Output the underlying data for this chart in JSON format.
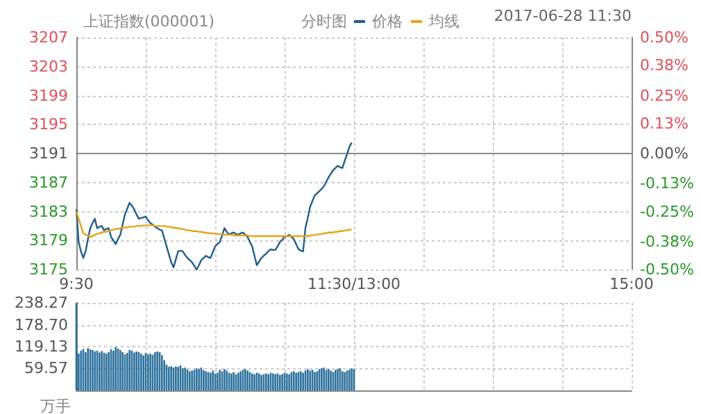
{
  "chart_data": [
    {
      "type": "line",
      "title": "上证指数(000001)",
      "subtitle": "分时图",
      "annotations": [
        "2017-06-28 11:30"
      ],
      "categories": [
        "9:30",
        null,
        null,
        null,
        null,
        null,
        null,
        null,
        null,
        null,
        null,
        null,
        null,
        null,
        null,
        null,
        null,
        null,
        null,
        null,
        null,
        null,
        null,
        null,
        null,
        null,
        null,
        null,
        null,
        null,
        null,
        null,
        null,
        null,
        null,
        null,
        null,
        null,
        null,
        null,
        null,
        null,
        null,
        null,
        null,
        null,
        null,
        null,
        null,
        null,
        null,
        null,
        null,
        null,
        null,
        null,
        null,
        null,
        null,
        null,
        null,
        null,
        null,
        null,
        null,
        null,
        null,
        null,
        null,
        null,
        null,
        null,
        null,
        null,
        null,
        null,
        null,
        null,
        null,
        null,
        null,
        null,
        null,
        null,
        null,
        null,
        null,
        null,
        null,
        null,
        null,
        null,
        null,
        null,
        null,
        null,
        null,
        null,
        null,
        null,
        null,
        null,
        null,
        null,
        null,
        null,
        null,
        null,
        null,
        null,
        null,
        null,
        null,
        null,
        null,
        null,
        null,
        null,
        null,
        null,
        "11:30/13:00",
        null,
        null,
        null,
        null,
        null,
        null,
        null,
        null,
        null,
        null,
        null,
        null,
        null,
        null,
        null,
        null,
        null,
        null,
        null,
        null,
        null,
        null,
        null,
        null,
        null,
        null,
        null,
        null,
        null,
        null,
        null,
        null,
        null,
        null,
        null,
        null,
        null,
        null,
        null,
        null,
        null,
        null,
        null,
        null,
        null,
        null,
        null,
        null,
        null,
        null,
        null,
        null,
        null,
        null,
        null,
        null,
        null,
        null,
        null,
        null,
        null,
        null,
        null,
        null,
        null,
        null,
        null,
        null,
        null,
        null,
        null,
        null,
        null,
        null,
        null,
        null,
        null,
        null,
        null,
        null,
        null,
        null,
        null,
        null,
        null,
        null,
        null,
        null,
        null,
        null,
        null,
        null,
        null,
        null,
        null,
        null,
        null,
        null,
        null,
        null,
        null,
        null,
        null,
        null,
        null,
        null,
        null,
        null,
        null,
        null,
        null,
        null,
        null,
        null,
        null,
        null,
        null,
        null,
        null,
        "15:00"
      ],
      "ylim": [
        3175,
        3207
      ],
      "yticks": [
        3175,
        3179,
        3183,
        3187,
        3191,
        3195,
        3199,
        3203,
        3207
      ],
      "y2lim": [
        -0.5,
        0.5
      ],
      "y2ticks": [
        {
          "value": -0.5,
          "label": "-0.50%"
        },
        {
          "value": -0.38,
          "label": "-0.38%"
        },
        {
          "value": -0.25,
          "label": "-0.25%"
        },
        {
          "value": -0.13,
          "label": "-0.13%"
        },
        {
          "value": 0,
          "label": "0.00%"
        },
        {
          "value": 0.13,
          "label": "0.13%"
        },
        {
          "value": 0.25,
          "label": "0.25%"
        },
        {
          "value": 0.38,
          "label": "0.38%"
        },
        {
          "value": 0.5,
          "label": "0.50%"
        }
      ],
      "grid": true,
      "legend": "top",
      "series": [
        {
          "name": "价格",
          "color": "#1f5f8b",
          "values": [
            3183.3,
            3178.8,
            3177.5,
            3176.6,
            3177.5,
            3179.2,
            3180.7,
            3181.4,
            3182.0,
            3180.7,
            3180.9,
            3181.0,
            3180.4,
            3180.6,
            3180.7,
            3179.5,
            3179.0,
            3178.5,
            3179.2,
            3179.8,
            3181.2,
            3182.6,
            3183.4,
            3184.2,
            3183.8,
            3183.3,
            3182.6,
            3182.0,
            3182.1,
            3182.2,
            3182.3,
            3181.8,
            3181.4,
            3181.2,
            3180.9,
            3180.7,
            3180.5,
            3180.4,
            3179.3,
            3178.2,
            3177.1,
            3176.0,
            3175.3,
            3176.4,
            3177.5,
            3177.6,
            3177.5,
            3177.0,
            3176.6,
            3176.3,
            3176.0,
            3175.5,
            3175.0,
            3175.6,
            3176.3,
            3176.6,
            3176.9,
            3176.7,
            3176.6,
            3177.4,
            3178.2,
            3178.5,
            3178.8,
            3179.7,
            3180.7,
            3180.2,
            3179.8,
            3180.0,
            3180.1,
            3179.9,
            3179.8,
            3180.0,
            3180.1,
            3179.8,
            3179.5,
            3178.8,
            3178.2,
            3176.9,
            3175.6,
            3176.1,
            3176.6,
            3176.9,
            3177.2,
            3177.5,
            3177.8,
            3177.7,
            3177.7,
            3178.2,
            3178.8,
            3179.1,
            3179.5,
            3179.6,
            3179.8,
            3179.5,
            3179.2,
            3178.5,
            3177.8,
            3177.6,
            3177.5,
            3180.7,
            3182.1,
            3183.6,
            3184.4,
            3185.2,
            3185.5,
            3185.8,
            3186.1,
            3186.5,
            3187.1,
            3187.7,
            3188.2,
            3188.7,
            3189.0,
            3189.3,
            3189.1,
            3189.0,
            3190.0,
            3190.9,
            3191.9,
            3192.5,
            null,
            null,
            null,
            null,
            null,
            null,
            null,
            null,
            null,
            null,
            null,
            null,
            null,
            null,
            null,
            null,
            null,
            null,
            null,
            null,
            null,
            null,
            null,
            null,
            null,
            null,
            null,
            null,
            null,
            null,
            null,
            null,
            null,
            null,
            null,
            null,
            null,
            null,
            null,
            null,
            null,
            null,
            null,
            null,
            null,
            null,
            null,
            null,
            null,
            null,
            null,
            null,
            null,
            null,
            null,
            null,
            null,
            null,
            null,
            null,
            null,
            null,
            null,
            null,
            null,
            null,
            null,
            null,
            null,
            null,
            null,
            null,
            null,
            null,
            null,
            null,
            null,
            null,
            null,
            null,
            null,
            null,
            null,
            null,
            null,
            null,
            null,
            null,
            null,
            null,
            null,
            null,
            null,
            null,
            null,
            null,
            null,
            null,
            null,
            null,
            null,
            null,
            null,
            null,
            null,
            null,
            null,
            null,
            null,
            null,
            null,
            null,
            null,
            null,
            null,
            null,
            null,
            null,
            null,
            null,
            null
          ]
        },
        {
          "name": "均线",
          "color": "#e8a317",
          "values": [
            3183.0,
            3182.0,
            3181.0,
            3180.0,
            3179.8,
            3179.7,
            3179.5,
            3179.6,
            3179.8,
            3179.9,
            3180.0,
            3180.1,
            3180.2,
            3180.2,
            3180.3,
            3180.4,
            3180.5,
            3180.6,
            3180.6,
            3180.7,
            3180.8,
            3180.8,
            3180.8,
            3180.9,
            3180.9,
            3180.9,
            3181.0,
            3181.0,
            3181.0,
            3181.1,
            3181.1,
            3181.1,
            3181.1,
            3181.1,
            3181.0,
            3181.0,
            3181.0,
            3181.0,
            3181.0,
            3180.9,
            3180.9,
            3180.8,
            3180.8,
            3180.7,
            3180.7,
            3180.6,
            3180.6,
            3180.5,
            3180.4,
            3180.4,
            3180.3,
            3180.3,
            3180.3,
            3180.2,
            3180.2,
            3180.1,
            3180.1,
            3180.0,
            3180.0,
            3180.0,
            3179.9,
            3179.9,
            3179.9,
            3179.9,
            3179.8,
            3179.8,
            3179.8,
            3179.8,
            3179.7,
            3179.7,
            3179.7,
            3179.7,
            3179.7,
            3179.7,
            3179.7,
            3179.6,
            3179.6,
            3179.6,
            3179.6,
            3179.6,
            3179.6,
            3179.6,
            3179.6,
            3179.6,
            3179.6,
            3179.6,
            3179.6,
            3179.6,
            3179.6,
            3179.6,
            3179.6,
            3179.6,
            3179.6,
            3179.6,
            3179.6,
            3179.6,
            3179.6,
            3179.6,
            3179.6,
            3179.6,
            3179.6,
            3179.7,
            3179.7,
            3179.8,
            3179.8,
            3179.9,
            3179.9,
            3180.0,
            3180.0,
            3180.1,
            3180.1,
            3180.1,
            3180.2,
            3180.2,
            3180.3,
            3180.3,
            3180.4,
            3180.4,
            3180.5,
            3180.5,
            null,
            null,
            null,
            null,
            null,
            null,
            null,
            null,
            null,
            null,
            null,
            null,
            null,
            null,
            null,
            null,
            null,
            null,
            null,
            null,
            null,
            null,
            null,
            null,
            null,
            null,
            null,
            null,
            null,
            null,
            null,
            null,
            null,
            null,
            null,
            null,
            null,
            null,
            null,
            null,
            null,
            null,
            null,
            null,
            null,
            null,
            null,
            null,
            null,
            null,
            null,
            null,
            null,
            null,
            null,
            null,
            null,
            null,
            null,
            null,
            null,
            null,
            null,
            null,
            null,
            null,
            null,
            null,
            null,
            null,
            null,
            null,
            null,
            null,
            null,
            null,
            null,
            null,
            null,
            null,
            null,
            null,
            null,
            null,
            null,
            null,
            null,
            null,
            null,
            null,
            null,
            null,
            null,
            null,
            null,
            null,
            null,
            null,
            null,
            null,
            null,
            null,
            null,
            null,
            null,
            null,
            null,
            null,
            null,
            null,
            null,
            null,
            null,
            null,
            null,
            null,
            null,
            null,
            null,
            null,
            null
          ]
        }
      ]
    },
    {
      "type": "bar",
      "ylabel": "万手",
      "color": "#2a6f9b",
      "tick_labels": "y",
      "grid": true,
      "categories": [
        null,
        null,
        null,
        null,
        null,
        null,
        null,
        null,
        null,
        null,
        null,
        null,
        null,
        null,
        null,
        null,
        null,
        null,
        null,
        null,
        null,
        null,
        null,
        null,
        null,
        null,
        null,
        null,
        null,
        null,
        null,
        null,
        null,
        null,
        null,
        null,
        null,
        null,
        null,
        null,
        null,
        null,
        null,
        null,
        null,
        null,
        null,
        null,
        null,
        null,
        null,
        null,
        null,
        null,
        null,
        null,
        null,
        null,
        null,
        null,
        null,
        null,
        null,
        null,
        null,
        null,
        null,
        null,
        null,
        null,
        null,
        null,
        null,
        null,
        null,
        null,
        null,
        null,
        null,
        null,
        null,
        null,
        null,
        null,
        null,
        null,
        null,
        null,
        null,
        null,
        null,
        null,
        null,
        null,
        null,
        null,
        null,
        null,
        null,
        null,
        null,
        null,
        null,
        null,
        null,
        null,
        null,
        null,
        null,
        null,
        null,
        null,
        null,
        null,
        null,
        null,
        null,
        null,
        null,
        null,
        null,
        null,
        null,
        null,
        null,
        null,
        null,
        null,
        null,
        null,
        null,
        null,
        null,
        null,
        null,
        null,
        null,
        null,
        null,
        null,
        null,
        null,
        null,
        null,
        null,
        null,
        null,
        null,
        null,
        null,
        null,
        null,
        null,
        null,
        null,
        null,
        null,
        null,
        null,
        null,
        null,
        null,
        null,
        null,
        null,
        null,
        null,
        null,
        null,
        null,
        null,
        null,
        null,
        null,
        null,
        null,
        null,
        null,
        null,
        null,
        null,
        null,
        null,
        null,
        null,
        null,
        null,
        null,
        null,
        null,
        null,
        null,
        null,
        null,
        null,
        null,
        null,
        null,
        null,
        null,
        null,
        null,
        null,
        null,
        null,
        null,
        null,
        null,
        null,
        null,
        null,
        null,
        null,
        null,
        null,
        null,
        null,
        null,
        null,
        null,
        null,
        null,
        null,
        null,
        null,
        null,
        null,
        null,
        null,
        null,
        null,
        null,
        null,
        null,
        null,
        null,
        null,
        null,
        null,
        null,
        null
      ],
      "ylim": [
        0,
        238.27
      ],
      "yticks": [
        {
          "value": 0,
          "label": null
        },
        {
          "value": 59.57,
          "label": "59.57"
        },
        {
          "value": 119.13,
          "label": "119.13"
        },
        {
          "value": 178.7,
          "label": "178.70"
        },
        {
          "value": 238.27,
          "label": "238.27"
        }
      ],
      "values": [
        238,
        100,
        108,
        113,
        104,
        115,
        112,
        110,
        106,
        108,
        103,
        107,
        102,
        100,
        104,
        112,
        108,
        118,
        114,
        110,
        104,
        98,
        102,
        110,
        108,
        103,
        106,
        104,
        100,
        95,
        102,
        98,
        100,
        97,
        104,
        106,
        104,
        96,
        82,
        70,
        64,
        66,
        62,
        65,
        64,
        68,
        60,
        62,
        57,
        52,
        54,
        56,
        60,
        58,
        62,
        55,
        52,
        50,
        48,
        54,
        46,
        48,
        56,
        52,
        58,
        54,
        48,
        46,
        50,
        44,
        48,
        52,
        56,
        58,
        54,
        50,
        46,
        44,
        48,
        46,
        42,
        44,
        46,
        44,
        48,
        46,
        44,
        46,
        42,
        44,
        48,
        46,
        44,
        50,
        52,
        48,
        50,
        52,
        48,
        54,
        58,
        54,
        56,
        50,
        52,
        58,
        60,
        62,
        56,
        58,
        54,
        50,
        56,
        58,
        60,
        52,
        50,
        54,
        56,
        60,
        58,
        null,
        null,
        null,
        null,
        null,
        null,
        null,
        null,
        null,
        null,
        null,
        null,
        null,
        null,
        null,
        null,
        null,
        null,
        null,
        null,
        null,
        null,
        null,
        null,
        null,
        null,
        null,
        null,
        null,
        null,
        null,
        null,
        null,
        null,
        null,
        null,
        null,
        null,
        null,
        null,
        null,
        null,
        null,
        null,
        null,
        null,
        null,
        null,
        null,
        null,
        null,
        null,
        null,
        null,
        null,
        null,
        null,
        null,
        null,
        null,
        null,
        null,
        null,
        null,
        null,
        null,
        null,
        null,
        null,
        null,
        null,
        null,
        null,
        null,
        null,
        null,
        null,
        null,
        null,
        null,
        null,
        null,
        null,
        null,
        null,
        null,
        null,
        null,
        null,
        null,
        null,
        null,
        null,
        null,
        null,
        null,
        null,
        null,
        null,
        null,
        null,
        null,
        null,
        null,
        null,
        null,
        null,
        null,
        null,
        null,
        null,
        null,
        null,
        null,
        null,
        null,
        null,
        null,
        null,
        null
      ]
    }
  ]
}
